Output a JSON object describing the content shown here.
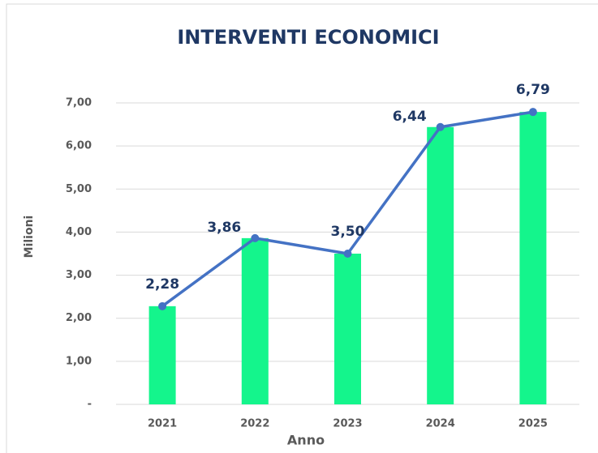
{
  "chart_data": {
    "type": "combo",
    "title": "INTERVENTI ECONOMICI",
    "x_label": "Anno",
    "y_label": "Milioni",
    "categories": [
      "2021",
      "2022",
      "2023",
      "2024",
      "2025"
    ],
    "series": [
      {
        "type": "bar",
        "color": "#14f58c",
        "values": [
          2.28,
          3.86,
          3.5,
          6.44,
          6.79
        ]
      },
      {
        "type": "line",
        "color": "#4472c4",
        "values": [
          2.28,
          3.86,
          3.5,
          6.44,
          6.79
        ],
        "value_labels": [
          "2,28",
          "3,86",
          "3,50",
          "6,44",
          "6,79"
        ]
      }
    ],
    "ylim": [
      0,
      7
    ],
    "yticks": [
      {
        "value": 0,
        "label": "-"
      },
      {
        "value": 1,
        "label": "1,00"
      },
      {
        "value": 2,
        "label": "2,00"
      },
      {
        "value": 3,
        "label": "3,00"
      },
      {
        "value": 4,
        "label": "4,00"
      },
      {
        "value": 5,
        "label": "5,00"
      },
      {
        "value": 6,
        "label": "6,00"
      },
      {
        "value": 7,
        "label": "7,00"
      }
    ],
    "grid": true
  }
}
